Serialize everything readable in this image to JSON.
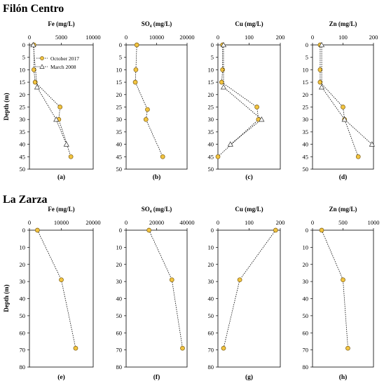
{
  "sections": [
    {
      "title": "Filón Centro"
    },
    {
      "title": "La Zarza"
    }
  ],
  "legend": {
    "series_a": "October 2017",
    "series_b": "March 2008"
  },
  "colors": {
    "series_a_fill": "#f2c440",
    "series_a_stroke": "#7a5a10",
    "series_b_fill": "#ffffff",
    "axis": "#000000"
  },
  "chart_data": [
    {
      "type": "scatter",
      "section": "Filón Centro",
      "panel_label": "(a)",
      "title": "Fe (mg/L)",
      "ylabel": "Depth (m)",
      "xlim": [
        0,
        10000
      ],
      "xticks": [
        "0",
        "5000",
        "10000"
      ],
      "xtick_values": [
        0,
        5000,
        10000
      ],
      "ylim": [
        0,
        50
      ],
      "yticks": [
        "0",
        "5",
        "10",
        "15",
        "20",
        "25",
        "30",
        "35",
        "40",
        "45",
        "50"
      ],
      "ytick_values": [
        0,
        5,
        10,
        15,
        20,
        25,
        30,
        35,
        40,
        45,
        50
      ],
      "series": [
        {
          "name": "October 2017",
          "marker": "circle",
          "points": [
            [
              700,
              0
            ],
            [
              700,
              10
            ],
            [
              900,
              15
            ],
            [
              4800,
              25
            ],
            [
              4600,
              30
            ],
            [
              6500,
              45
            ]
          ]
        },
        {
          "name": "March 2008",
          "marker": "triangle",
          "points": [
            [
              600,
              0
            ],
            [
              1200,
              17
            ],
            [
              4200,
              30
            ],
            [
              5800,
              40
            ]
          ]
        }
      ]
    },
    {
      "type": "scatter",
      "section": "Filón Centro",
      "panel_label": "(b)",
      "title": "SO₄ (mg/L)",
      "ylabel": "",
      "xlim": [
        0,
        20000
      ],
      "xticks": [
        "0",
        "10000",
        "20000"
      ],
      "xtick_values": [
        0,
        10000,
        20000
      ],
      "ylim": [
        0,
        50
      ],
      "yticks": [
        "0",
        "5",
        "10",
        "15",
        "20",
        "25",
        "30",
        "35",
        "40",
        "45",
        "50"
      ],
      "ytick_values": [
        0,
        5,
        10,
        15,
        20,
        25,
        30,
        35,
        40,
        45,
        50
      ],
      "series": [
        {
          "name": "October 2017",
          "marker": "circle",
          "points": [
            [
              3500,
              0
            ],
            [
              3200,
              10
            ],
            [
              3000,
              15
            ],
            [
              7000,
              26
            ],
            [
              6500,
              30
            ],
            [
              12000,
              45
            ]
          ]
        }
      ]
    },
    {
      "type": "scatter",
      "section": "Filón Centro",
      "panel_label": "(c)",
      "title": "Cu (mg/L)",
      "ylabel": "",
      "xlim": [
        0,
        200
      ],
      "xticks": [
        "0",
        "100",
        "200"
      ],
      "xtick_values": [
        0,
        100,
        200
      ],
      "ylim": [
        0,
        50
      ],
      "yticks": [
        "0",
        "5",
        "10",
        "15",
        "20",
        "25",
        "30",
        "35",
        "40",
        "45",
        "50"
      ],
      "ytick_values": [
        0,
        5,
        10,
        15,
        20,
        25,
        30,
        35,
        40,
        45,
        50
      ],
      "series": [
        {
          "name": "October 2017",
          "marker": "circle",
          "points": [
            [
              15,
              0
            ],
            [
              15,
              10
            ],
            [
              12,
              15
            ],
            [
              125,
              25
            ],
            [
              130,
              30
            ],
            [
              0,
              45
            ]
          ]
        },
        {
          "name": "March 2008",
          "marker": "triangle",
          "points": [
            [
              18,
              0
            ],
            [
              18,
              17
            ],
            [
              140,
              30
            ],
            [
              40,
              40
            ]
          ]
        }
      ]
    },
    {
      "type": "scatter",
      "section": "Filón Centro",
      "panel_label": "(d)",
      "title": "Zn (mg/L)",
      "ylabel": "",
      "xlim": [
        0,
        200
      ],
      "xticks": [
        "0",
        "100",
        "200"
      ],
      "xtick_values": [
        0,
        100,
        200
      ],
      "ylim": [
        0,
        50
      ],
      "yticks": [
        "0",
        "5",
        "10",
        "15",
        "20",
        "25",
        "30",
        "35",
        "40",
        "45",
        "50"
      ],
      "ytick_values": [
        0,
        5,
        10,
        15,
        20,
        25,
        30,
        35,
        40,
        45,
        50
      ],
      "series": [
        {
          "name": "October 2017",
          "marker": "circle",
          "points": [
            [
              25,
              0
            ],
            [
              25,
              10
            ],
            [
              25,
              15
            ],
            [
              100,
              25
            ],
            [
              105,
              30
            ],
            [
              150,
              45
            ]
          ]
        },
        {
          "name": "March 2008",
          "marker": "triangle",
          "points": [
            [
              30,
              0
            ],
            [
              30,
              17
            ],
            [
              105,
              30
            ],
            [
              195,
              40
            ]
          ]
        }
      ]
    },
    {
      "type": "scatter",
      "section": "La Zarza",
      "panel_label": "(e)",
      "title": "Fe (mg/L)",
      "ylabel": "Depth (m)",
      "xlim": [
        0,
        20000
      ],
      "xticks": [
        "0",
        "10000",
        "20000"
      ],
      "xtick_values": [
        0,
        10000,
        20000
      ],
      "ylim": [
        0,
        80
      ],
      "yticks": [
        "0",
        "10",
        "20",
        "30",
        "40",
        "50",
        "60",
        "70",
        "80"
      ],
      "ytick_values": [
        0,
        10,
        20,
        30,
        40,
        50,
        60,
        70,
        80
      ],
      "series": [
        {
          "name": "October 2017",
          "marker": "circle",
          "points": [
            [
              2500,
              0
            ],
            [
              10000,
              29
            ],
            [
              14500,
              69
            ]
          ]
        }
      ]
    },
    {
      "type": "scatter",
      "section": "La Zarza",
      "panel_label": "(f)",
      "title": "SO₄ (mg/L)",
      "ylabel": "",
      "xlim": [
        0,
        40000
      ],
      "xticks": [
        "0",
        "20000",
        "40000"
      ],
      "xtick_values": [
        0,
        20000,
        40000
      ],
      "ylim": [
        0,
        80
      ],
      "yticks": [
        "0",
        "10",
        "20",
        "30",
        "40",
        "50",
        "60",
        "70",
        "80"
      ],
      "ytick_values": [
        0,
        10,
        20,
        30,
        40,
        50,
        60,
        70,
        80
      ],
      "series": [
        {
          "name": "October 2017",
          "marker": "circle",
          "points": [
            [
              15000,
              0
            ],
            [
              30000,
              29
            ],
            [
              37000,
              69
            ]
          ]
        }
      ]
    },
    {
      "type": "scatter",
      "section": "La Zarza",
      "panel_label": "(g)",
      "title": "Cu (mg/L)",
      "ylabel": "",
      "xlim": [
        0,
        200
      ],
      "xticks": [
        "0",
        "100",
        "200"
      ],
      "xtick_values": [
        0,
        100,
        200
      ],
      "ylim": [
        0,
        80
      ],
      "yticks": [
        "0",
        "10",
        "20",
        "30",
        "40",
        "50",
        "60",
        "70",
        "80"
      ],
      "ytick_values": [
        0,
        10,
        20,
        30,
        40,
        50,
        60,
        70,
        80
      ],
      "series": [
        {
          "name": "October 2017",
          "marker": "circle",
          "points": [
            [
              185,
              0
            ],
            [
              70,
              29
            ],
            [
              18,
              69
            ]
          ]
        }
      ]
    },
    {
      "type": "scatter",
      "section": "La Zarza",
      "panel_label": "(h)",
      "title": "Zn (mg/L)",
      "ylabel": "",
      "xlim": [
        0,
        1000
      ],
      "xticks": [
        "0",
        "500",
        "1000"
      ],
      "xtick_values": [
        0,
        500,
        1000
      ],
      "ylim": [
        0,
        80
      ],
      "yticks": [
        "0",
        "10",
        "20",
        "30",
        "40",
        "50",
        "60",
        "70",
        "80"
      ],
      "ytick_values": [
        0,
        10,
        20,
        30,
        40,
        50,
        60,
        70,
        80
      ],
      "series": [
        {
          "name": "October 2017",
          "marker": "circle",
          "points": [
            [
              150,
              0
            ],
            [
              500,
              29
            ],
            [
              580,
              69
            ]
          ]
        }
      ]
    }
  ]
}
